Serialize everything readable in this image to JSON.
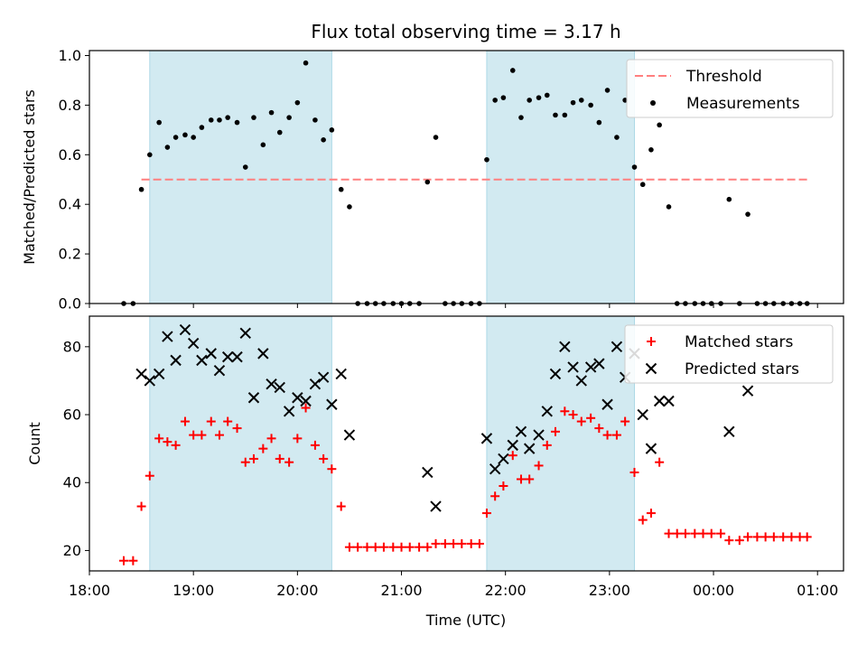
{
  "figure": {
    "title": "Flux total observing time = 3.17 h",
    "xlabel": "Time (UTC)",
    "xticks": [
      "18:00",
      "19:00",
      "20:00",
      "21:00",
      "22:00",
      "23:00",
      "00:00",
      "01:00"
    ],
    "colors": {
      "shade": "#add8e6",
      "threshold": "#ff7f7f",
      "measurement": "#000000",
      "matched": "#ff0000",
      "predicted": "#000000"
    }
  },
  "chart_data": [
    {
      "type": "scatter",
      "ylabel": "Matched/Predicted stars",
      "xlim_hours": [
        18.0,
        25.25
      ],
      "ylim": [
        0,
        1.02
      ],
      "yticks": [
        "0.0",
        "0.2",
        "0.4",
        "0.6",
        "0.8",
        "1.0"
      ],
      "shaded_intervals": [
        [
          18.58,
          20.33
        ],
        [
          21.82,
          23.24
        ]
      ],
      "legend": {
        "placement": "top-right",
        "entries": [
          "Threshold",
          "Measurements"
        ]
      },
      "threshold": {
        "name": "Threshold",
        "value": 0.5,
        "x_range": [
          18.5,
          24.9
        ]
      },
      "series": [
        {
          "name": "Measurements",
          "x": [
            18.33,
            18.42,
            18.5,
            18.58,
            18.67,
            18.75,
            18.83,
            18.92,
            19.0,
            19.08,
            19.17,
            19.25,
            19.33,
            19.42,
            19.5,
            19.58,
            19.67,
            19.75,
            19.83,
            19.92,
            20.0,
            20.08,
            20.17,
            20.25,
            20.33,
            20.42,
            20.5,
            20.58,
            20.67,
            20.75,
            20.83,
            20.92,
            21.0,
            21.08,
            21.17,
            21.25,
            21.33,
            21.42,
            21.5,
            21.58,
            21.67,
            21.75,
            21.82,
            21.9,
            21.98,
            22.07,
            22.15,
            22.23,
            22.32,
            22.4,
            22.48,
            22.57,
            22.65,
            22.73,
            22.82,
            22.9,
            22.98,
            23.07,
            23.15,
            23.24,
            23.32,
            23.4,
            23.48,
            23.57,
            23.65,
            23.73,
            23.82,
            23.9,
            23.98,
            24.07,
            24.15,
            24.25,
            24.33,
            24.42,
            24.5,
            24.58,
            24.67,
            24.75,
            24.83,
            24.9
          ],
          "y": [
            0.0,
            0.0,
            0.46,
            0.6,
            0.73,
            0.63,
            0.67,
            0.68,
            0.67,
            0.71,
            0.74,
            0.74,
            0.75,
            0.73,
            0.55,
            0.75,
            0.64,
            0.77,
            0.69,
            0.75,
            0.81,
            0.97,
            0.74,
            0.66,
            0.7,
            0.46,
            0.39,
            0.0,
            0.0,
            0.0,
            0.0,
            0.0,
            0.0,
            0.0,
            0.0,
            0.49,
            0.67,
            0.0,
            0.0,
            0.0,
            0.0,
            0.0,
            0.58,
            0.82,
            0.83,
            0.94,
            0.75,
            0.82,
            0.83,
            0.84,
            0.76,
            0.76,
            0.81,
            0.82,
            0.8,
            0.73,
            0.86,
            0.67,
            0.82,
            0.55,
            0.48,
            0.62,
            0.72,
            0.39,
            0.0,
            0.0,
            0.0,
            0.0,
            0.0,
            0.0,
            0.42,
            0.0,
            0.36,
            0.0,
            0.0,
            0.0,
            0.0,
            0.0,
            0.0,
            0.0
          ]
        }
      ]
    },
    {
      "type": "scatter",
      "ylabel": "Count",
      "xlim_hours": [
        18.0,
        25.25
      ],
      "ylim": [
        14,
        89
      ],
      "yticks": [
        "20",
        "40",
        "60",
        "80"
      ],
      "shaded_intervals": [
        [
          18.58,
          20.33
        ],
        [
          21.82,
          23.24
        ]
      ],
      "legend": {
        "placement": "top-right",
        "entries": [
          "Matched stars",
          "Predicted stars"
        ]
      },
      "series": [
        {
          "name": "Matched stars",
          "x": [
            18.33,
            18.42,
            18.5,
            18.58,
            18.67,
            18.75,
            18.83,
            18.92,
            19.0,
            19.08,
            19.17,
            19.25,
            19.33,
            19.42,
            19.5,
            19.58,
            19.67,
            19.75,
            19.83,
            19.92,
            20.0,
            20.08,
            20.17,
            20.25,
            20.33,
            20.42,
            20.5,
            20.58,
            20.67,
            20.75,
            20.83,
            20.92,
            21.0,
            21.08,
            21.17,
            21.25,
            21.33,
            21.42,
            21.5,
            21.58,
            21.67,
            21.75,
            21.82,
            21.9,
            21.98,
            22.07,
            22.15,
            22.23,
            22.32,
            22.4,
            22.48,
            22.57,
            22.65,
            22.73,
            22.82,
            22.9,
            22.98,
            23.07,
            23.15,
            23.24,
            23.32,
            23.4,
            23.48,
            23.57,
            23.65,
            23.73,
            23.82,
            23.9,
            23.98,
            24.07,
            24.15,
            24.25,
            24.33,
            24.42,
            24.5,
            24.58,
            24.67,
            24.75,
            24.83,
            24.9
          ],
          "y": [
            17,
            17,
            33,
            42,
            53,
            52,
            51,
            58,
            54,
            54,
            58,
            54,
            58,
            56,
            46,
            47,
            50,
            53,
            47,
            46,
            53,
            62,
            51,
            47,
            44,
            33,
            21,
            21,
            21,
            21,
            21,
            21,
            21,
            21,
            21,
            21,
            22,
            22,
            22,
            22,
            22,
            22,
            31,
            36,
            39,
            48,
            41,
            41,
            45,
            51,
            55,
            61,
            60,
            58,
            59,
            56,
            54,
            54,
            58,
            43,
            29,
            31,
            46,
            25,
            25,
            25,
            25,
            25,
            25,
            25,
            23,
            23,
            24,
            24,
            24,
            24,
            24,
            24,
            24,
            24
          ]
        },
        {
          "name": "Predicted stars",
          "x": [
            18.5,
            18.58,
            18.67,
            18.75,
            18.83,
            18.92,
            19.0,
            19.08,
            19.17,
            19.25,
            19.33,
            19.42,
            19.5,
            19.58,
            19.67,
            19.75,
            19.83,
            19.92,
            20.0,
            20.08,
            20.17,
            20.25,
            20.33,
            20.42,
            20.5,
            21.25,
            21.33,
            21.82,
            21.9,
            21.98,
            22.07,
            22.15,
            22.23,
            22.32,
            22.4,
            22.48,
            22.57,
            22.65,
            22.73,
            22.82,
            22.9,
            22.98,
            23.07,
            23.15,
            23.24,
            23.32,
            23.4,
            23.48,
            23.57,
            24.15,
            24.33
          ],
          "y": [
            72,
            70,
            72,
            83,
            76,
            85,
            81,
            76,
            78,
            73,
            77,
            77,
            84,
            65,
            78,
            69,
            68,
            61,
            65,
            64,
            69,
            71,
            63,
            72,
            54,
            43,
            33,
            53,
            44,
            47,
            51,
            55,
            50,
            54,
            61,
            72,
            80,
            74,
            70,
            74,
            75,
            63,
            80,
            71,
            78,
            60,
            50,
            64,
            64,
            55,
            67
          ]
        }
      ]
    }
  ]
}
